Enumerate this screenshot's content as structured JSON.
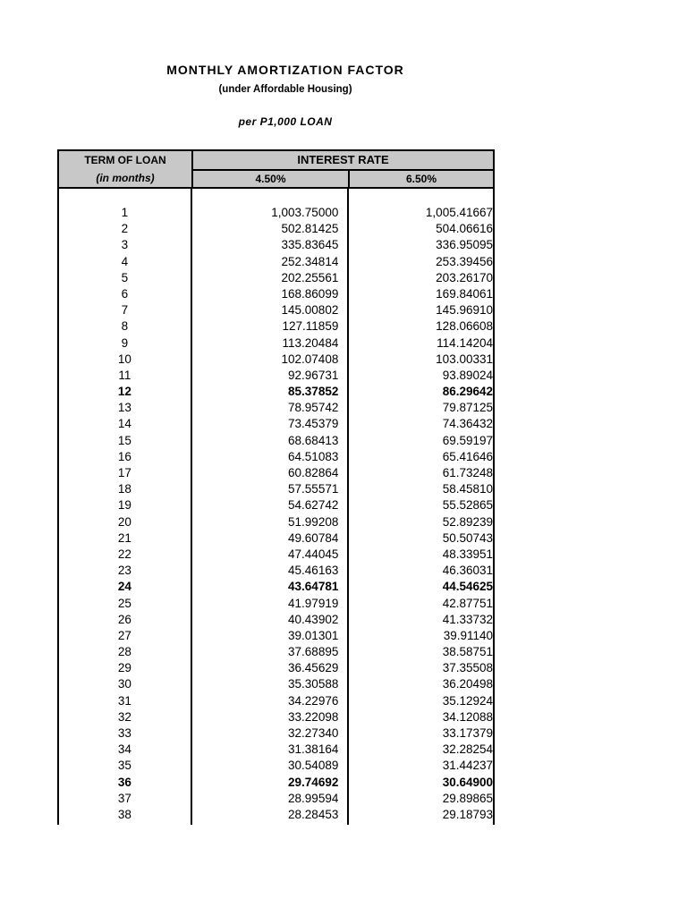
{
  "title": "MONTHLY AMORTIZATION FACTOR",
  "subtitle": "(under Affordable Housing)",
  "basis": "per P1,000 LOAN",
  "table": {
    "term_header": "TERM OF LOAN",
    "term_subheader": "(in months)",
    "rate_header": "INTEREST RATE",
    "rates": [
      "4.50%",
      "6.50%"
    ],
    "rows": [
      {
        "term": "1",
        "r1": "1,003.75000",
        "r2": "1,005.41667",
        "bold": false
      },
      {
        "term": "2",
        "r1": "502.81425",
        "r2": "504.06616",
        "bold": false
      },
      {
        "term": "3",
        "r1": "335.83645",
        "r2": "336.95095",
        "bold": false
      },
      {
        "term": "4",
        "r1": "252.34814",
        "r2": "253.39456",
        "bold": false
      },
      {
        "term": "5",
        "r1": "202.25561",
        "r2": "203.26170",
        "bold": false
      },
      {
        "term": "6",
        "r1": "168.86099",
        "r2": "169.84061",
        "bold": false
      },
      {
        "term": "7",
        "r1": "145.00802",
        "r2": "145.96910",
        "bold": false
      },
      {
        "term": "8",
        "r1": "127.11859",
        "r2": "128.06608",
        "bold": false
      },
      {
        "term": "9",
        "r1": "113.20484",
        "r2": "114.14204",
        "bold": false
      },
      {
        "term": "10",
        "r1": "102.07408",
        "r2": "103.00331",
        "bold": false
      },
      {
        "term": "11",
        "r1": "92.96731",
        "r2": "93.89024",
        "bold": false
      },
      {
        "term": "12",
        "r1": "85.37852",
        "r2": "86.29642",
        "bold": true
      },
      {
        "term": "13",
        "r1": "78.95742",
        "r2": "79.87125",
        "bold": false
      },
      {
        "term": "14",
        "r1": "73.45379",
        "r2": "74.36432",
        "bold": false
      },
      {
        "term": "15",
        "r1": "68.68413",
        "r2": "69.59197",
        "bold": false
      },
      {
        "term": "16",
        "r1": "64.51083",
        "r2": "65.41646",
        "bold": false
      },
      {
        "term": "17",
        "r1": "60.82864",
        "r2": "61.73248",
        "bold": false
      },
      {
        "term": "18",
        "r1": "57.55571",
        "r2": "58.45810",
        "bold": false
      },
      {
        "term": "19",
        "r1": "54.62742",
        "r2": "55.52865",
        "bold": false
      },
      {
        "term": "20",
        "r1": "51.99208",
        "r2": "52.89239",
        "bold": false
      },
      {
        "term": "21",
        "r1": "49.60784",
        "r2": "50.50743",
        "bold": false
      },
      {
        "term": "22",
        "r1": "47.44045",
        "r2": "48.33951",
        "bold": false
      },
      {
        "term": "23",
        "r1": "45.46163",
        "r2": "46.36031",
        "bold": false
      },
      {
        "term": "24",
        "r1": "43.64781",
        "r2": "44.54625",
        "bold": true
      },
      {
        "term": "25",
        "r1": "41.97919",
        "r2": "42.87751",
        "bold": false
      },
      {
        "term": "26",
        "r1": "40.43902",
        "r2": "41.33732",
        "bold": false
      },
      {
        "term": "27",
        "r1": "39.01301",
        "r2": "39.91140",
        "bold": false
      },
      {
        "term": "28",
        "r1": "37.68895",
        "r2": "38.58751",
        "bold": false
      },
      {
        "term": "29",
        "r1": "36.45629",
        "r2": "37.35508",
        "bold": false
      },
      {
        "term": "30",
        "r1": "35.30588",
        "r2": "36.20498",
        "bold": false
      },
      {
        "term": "31",
        "r1": "34.22976",
        "r2": "35.12924",
        "bold": false
      },
      {
        "term": "32",
        "r1": "33.22098",
        "r2": "34.12088",
        "bold": false
      },
      {
        "term": "33",
        "r1": "32.27340",
        "r2": "33.17379",
        "bold": false
      },
      {
        "term": "34",
        "r1": "31.38164",
        "r2": "32.28254",
        "bold": false
      },
      {
        "term": "35",
        "r1": "30.54089",
        "r2": "31.44237",
        "bold": false
      },
      {
        "term": "36",
        "r1": "29.74692",
        "r2": "30.64900",
        "bold": true
      },
      {
        "term": "37",
        "r1": "28.99594",
        "r2": "29.89865",
        "bold": false
      },
      {
        "term": "38",
        "r1": "28.28453",
        "r2": "29.18793",
        "bold": false
      }
    ]
  }
}
